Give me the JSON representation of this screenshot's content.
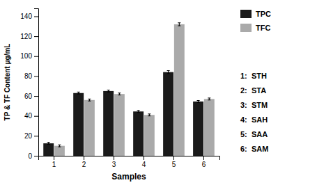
{
  "chart_data": {
    "type": "bar",
    "categories": [
      "1",
      "2",
      "3",
      "4",
      "5",
      "6"
    ],
    "series": [
      {
        "name": "TPC",
        "color": "#1a1a1a",
        "values": [
          12.5,
          63.0,
          65.0,
          44.5,
          84.0,
          54.5
        ],
        "errors": [
          1.0,
          1.0,
          1.0,
          1.0,
          1.5,
          1.0
        ]
      },
      {
        "name": "TFC",
        "color": "#aaaaaa",
        "values": [
          10.0,
          56.0,
          62.0,
          41.0,
          132.0,
          57.0
        ],
        "errors": [
          1.0,
          1.0,
          1.0,
          1.0,
          1.5,
          1.0
        ]
      }
    ],
    "xlabel": "Samples",
    "ylabel": "TP & TF Content μg/mL",
    "ylim": [
      0,
      148
    ],
    "yticks": [
      0,
      20,
      40,
      60,
      80,
      100,
      120,
      140
    ],
    "grid": false,
    "legend": "upper right",
    "annotations": [
      "1:  STH",
      "2:  STA",
      "3:  STM",
      "4:  SAH",
      "5:  SAA",
      "6:  SAM"
    ]
  }
}
